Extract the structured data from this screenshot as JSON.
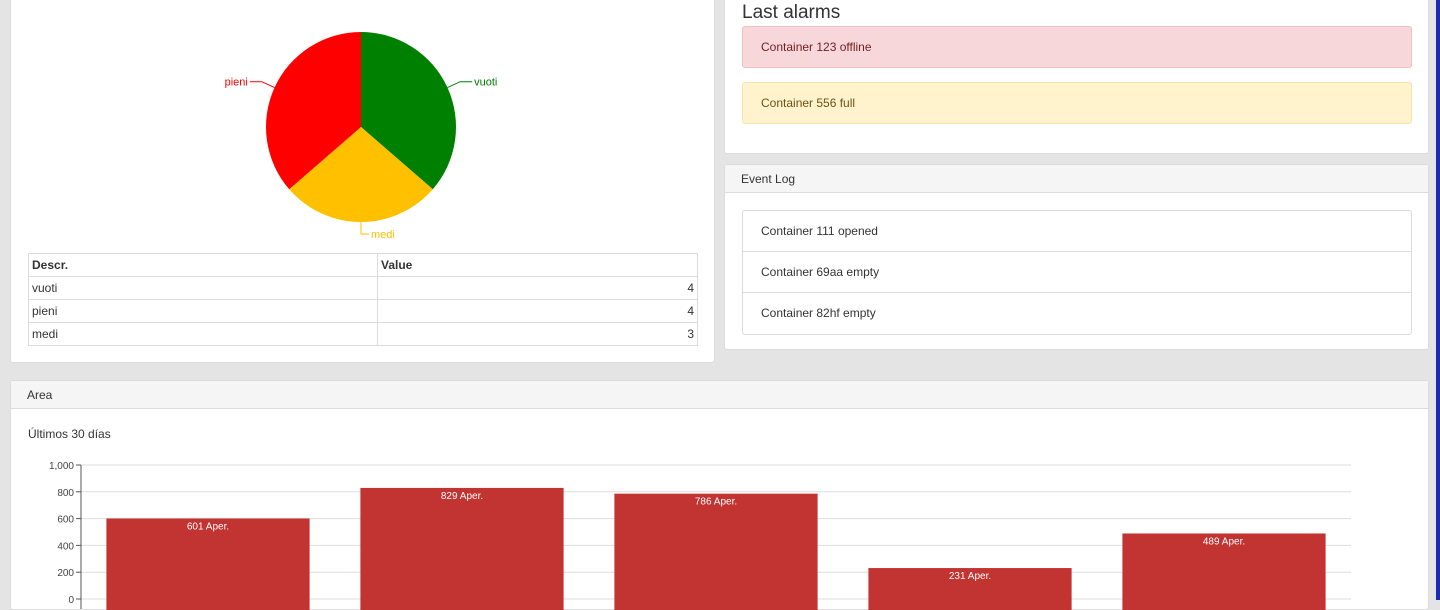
{
  "pie_panel": {
    "table": {
      "headers": [
        "Descr.",
        "Value"
      ],
      "rows": [
        {
          "descr": "vuoti",
          "value": "4"
        },
        {
          "descr": "pieni",
          "value": "4"
        },
        {
          "descr": "medi",
          "value": "3"
        }
      ]
    }
  },
  "alarms": {
    "title": "Last alarms",
    "items": [
      "Container 123 offline",
      "Container 556 full"
    ]
  },
  "event_log": {
    "title": "Event Log",
    "items": [
      "Container 111 opened",
      "Container 69aa empty",
      "Container 82hf empty"
    ]
  },
  "area": {
    "title": "Area",
    "subtitle": "Últimos 30 días"
  },
  "chart_data": [
    {
      "type": "pie",
      "labels": [
        "vuoti",
        "medi",
        "pieni"
      ],
      "values": [
        4,
        3,
        4
      ],
      "colors": [
        "#008000",
        "#ffc000",
        "#ff0000"
      ]
    },
    {
      "type": "bar",
      "values": [
        601,
        829,
        786,
        231,
        489
      ],
      "data_labels": [
        "601 Aper.",
        "829 Aper.",
        "786 Aper.",
        "231 Aper.",
        "489 Aper."
      ],
      "ylim": [
        0,
        1000
      ],
      "yticks": [
        "1,000",
        "800",
        "600",
        "400",
        "200",
        "0"
      ],
      "grid": true,
      "color": "#c13431"
    }
  ]
}
